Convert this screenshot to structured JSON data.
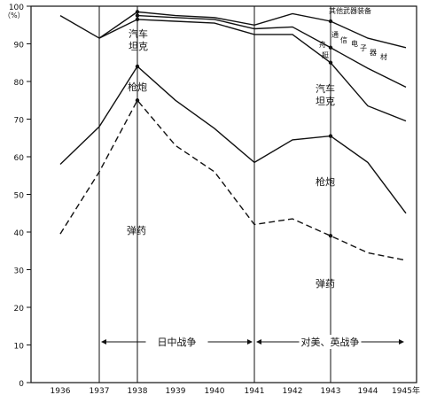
{
  "chart_data": {
    "type": "line",
    "y_unit_label": "（%）",
    "x": [
      "1936",
      "1937",
      "1938",
      "1939",
      "1940",
      "1941",
      "1942",
      "1943",
      "1944",
      "1945年"
    ],
    "ylim": [
      0,
      100
    ],
    "yticks": [
      0,
      10,
      20,
      30,
      40,
      50,
      60,
      70,
      80,
      90,
      100
    ],
    "vertical_lines_at": [
      "1937",
      "1938",
      "1941",
      "1943"
    ],
    "series": [
      {
        "name": "弹药",
        "style": "dashed",
        "x": [
          "1936",
          "1937",
          "1938",
          "1939",
          "1940",
          "1941",
          "1942",
          "1943",
          "1944",
          "1945年"
        ],
        "values": [
          39.5,
          56,
          75,
          63,
          56,
          42,
          43.5,
          39,
          34.5,
          32.5
        ]
      },
      {
        "name": "枪炮",
        "style": "solid",
        "x": [
          "1936",
          "1937",
          "1938",
          "1939",
          "1940",
          "1941",
          "1942",
          "1943",
          "1944",
          "1945年"
        ],
        "values": [
          58,
          68,
          84,
          75,
          67.5,
          58.5,
          64.5,
          65.5,
          58.5,
          45
        ]
      },
      {
        "name": "汽车坦克",
        "style": "solid",
        "x": [
          "1937",
          "1938",
          "1939",
          "1940",
          "1941",
          "1942",
          "1943",
          "1944",
          "1945年"
        ],
        "values": [
          91.5,
          96.5,
          96,
          95.5,
          92.5,
          92.5,
          85,
          73.5,
          69.5
        ]
      },
      {
        "name": "通信电子器材",
        "style": "solid",
        "x": [
          "1938",
          "1939",
          "1940",
          "1941",
          "1942",
          "1943",
          "1944",
          "1945年"
        ],
        "values": [
          97.5,
          97,
          96.5,
          94,
          94.5,
          89,
          83.5,
          78.5
        ]
      },
      {
        "name": "其他武器装备",
        "style": "solid",
        "x": [
          "1936",
          "1937",
          "1938",
          "1939",
          "1940",
          "1941",
          "1942",
          "1943",
          "1944",
          "1945年"
        ],
        "values": [
          97.5,
          91.5,
          98.5,
          97.5,
          97,
          95,
          98,
          96,
          91.5,
          89
        ]
      }
    ],
    "periods": [
      {
        "label": "日中战争",
        "from": "1937",
        "to": "1941"
      },
      {
        "label": "对美、英战争",
        "from": "1941",
        "to": "1945年"
      }
    ],
    "annotations": {
      "other": "其他武器装备",
      "comm": [
        "通",
        "信",
        "电",
        "子",
        "器",
        "材"
      ],
      "aircraft": [
        "舟",
        "艇"
      ],
      "car_left": [
        "汽车",
        "坦克"
      ],
      "car_right": [
        "汽车",
        "坦克"
      ],
      "gun_left": "枪炮",
      "gun_right": "枪炮",
      "ammo_left": "弹药",
      "ammo_right": "弹药"
    }
  }
}
